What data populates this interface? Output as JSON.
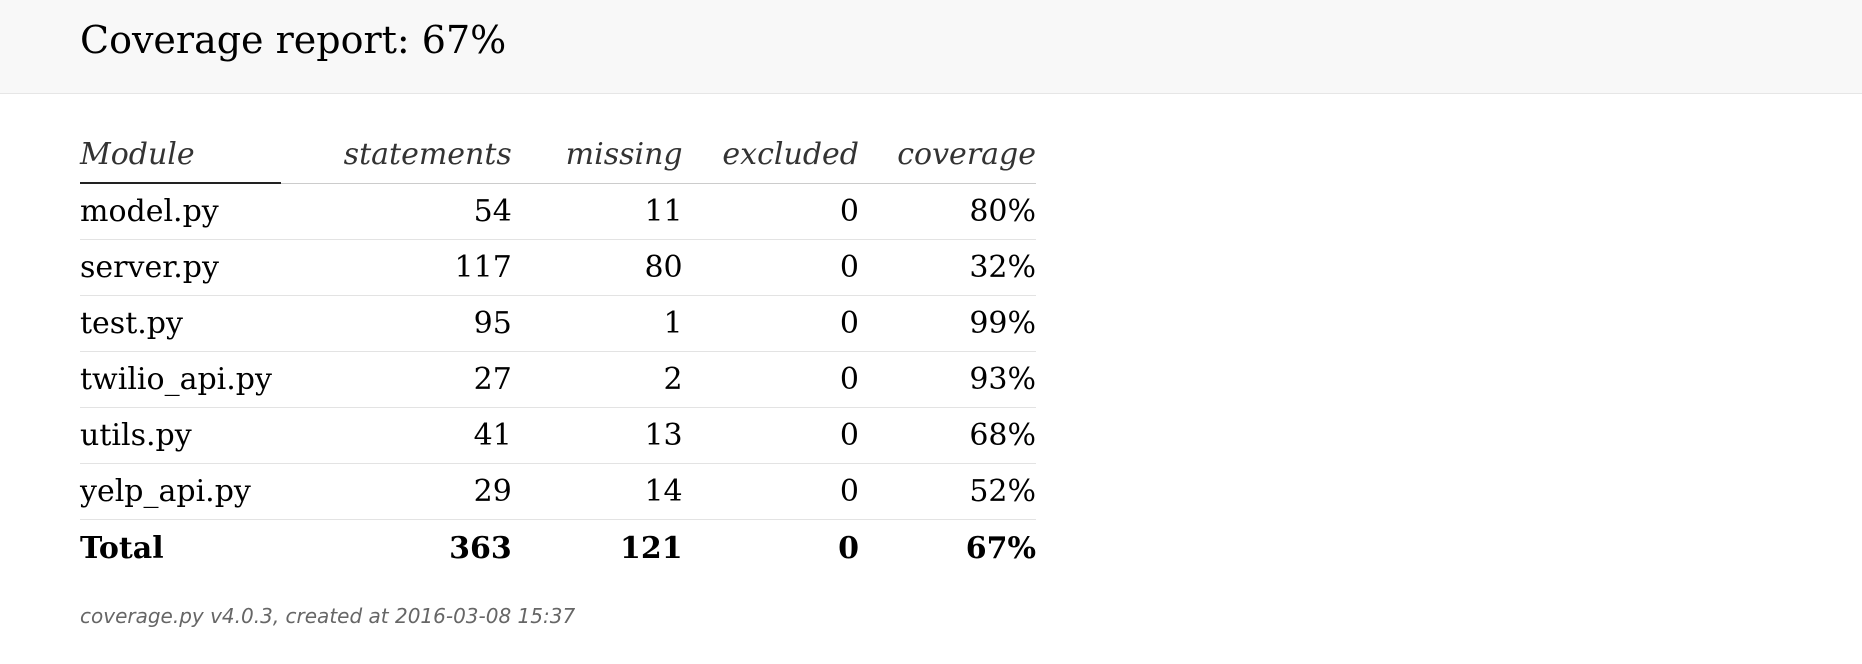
{
  "header": {
    "title": "Coverage report: 67%"
  },
  "table": {
    "columns": [
      "Module",
      "statements",
      "missing",
      "excluded",
      "coverage"
    ],
    "rows": [
      {
        "module": "model.py",
        "statements": "54",
        "missing": "11",
        "excluded": "0",
        "coverage": "80%"
      },
      {
        "module": "server.py",
        "statements": "117",
        "missing": "80",
        "excluded": "0",
        "coverage": "32%"
      },
      {
        "module": "test.py",
        "statements": "95",
        "missing": "1",
        "excluded": "0",
        "coverage": "99%"
      },
      {
        "module": "twilio_api.py",
        "statements": "27",
        "missing": "2",
        "excluded": "0",
        "coverage": "93%"
      },
      {
        "module": "utils.py",
        "statements": "41",
        "missing": "13",
        "excluded": "0",
        "coverage": "68%"
      },
      {
        "module": "yelp_api.py",
        "statements": "29",
        "missing": "14",
        "excluded": "0",
        "coverage": "52%"
      }
    ],
    "total": {
      "module": "Total",
      "statements": "363",
      "missing": "121",
      "excluded": "0",
      "coverage": "67%"
    }
  },
  "footer": {
    "text": "coverage.py v4.0.3, created at 2016-03-08 15:37"
  }
}
